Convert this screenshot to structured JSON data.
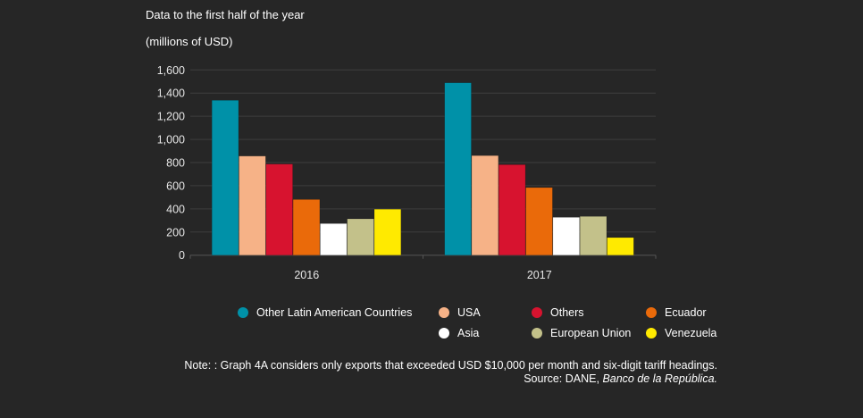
{
  "chart_data": {
    "type": "bar",
    "subtitle": "Data to the first half of the year",
    "ylabel": "(millions of USD)",
    "categories": [
      "2016",
      "2017"
    ],
    "ylim": [
      0,
      1600
    ],
    "yticks": [
      "0",
      "200",
      "400",
      "600",
      "800",
      "1,000",
      "1,200",
      "1,400",
      "1,600"
    ],
    "ytick_values": [
      0,
      200,
      400,
      600,
      800,
      1000,
      1200,
      1400,
      1600
    ],
    "grid": true,
    "legend_placement": "bottom",
    "series": [
      {
        "name": "Other Latin American Countries",
        "color": "#0091A8",
        "values": [
          1338,
          1489
        ]
      },
      {
        "name": "USA",
        "color": "#F6B287",
        "values": [
          856,
          860
        ]
      },
      {
        "name": "Others",
        "color": "#D7132F",
        "values": [
          787,
          782
        ]
      },
      {
        "name": "Ecuador",
        "color": "#EA6A0A",
        "values": [
          481,
          584
        ]
      },
      {
        "name": "Asia",
        "color": "#FFFFFF",
        "values": [
          273,
          327
        ]
      },
      {
        "name": "European Union",
        "color": "#C3C18A",
        "values": [
          314,
          335
        ]
      },
      {
        "name": "Venezuela",
        "color": "#FFEA00",
        "values": [
          397,
          152
        ]
      }
    ]
  },
  "note": "Note: : Graph 4A considers only exports that exceeded USD $10,000 per month and six-digit tariff headings.",
  "source_prefix": "Source: DANE, ",
  "source_italic": "Banco de la República."
}
